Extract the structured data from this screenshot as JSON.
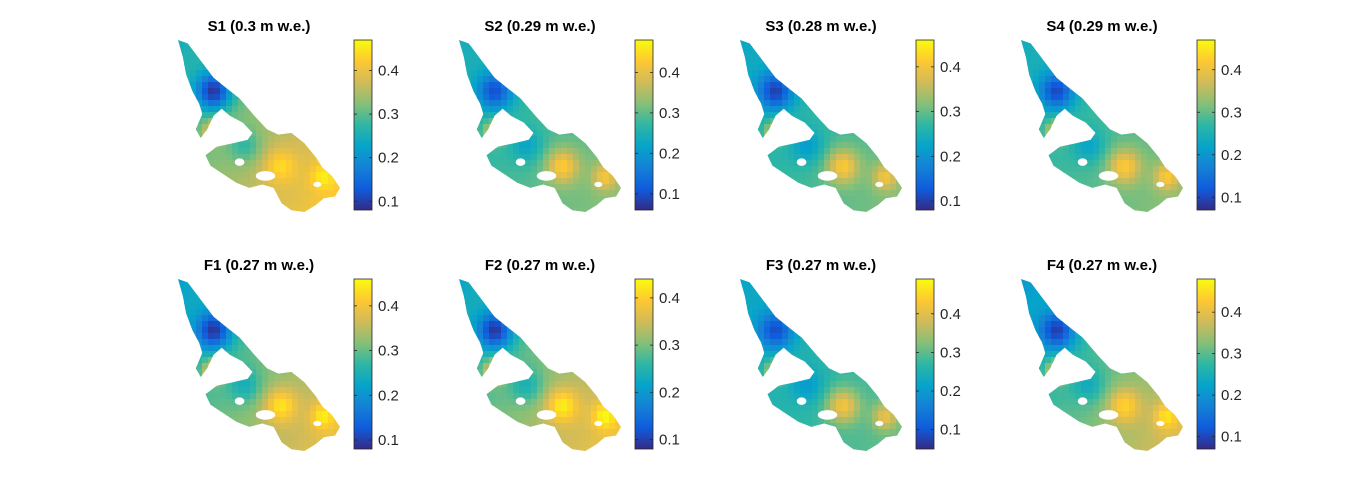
{
  "colors": {
    "background": "#ffffff",
    "parula": [
      "#352a87",
      "#0f5cdd",
      "#1481d6",
      "#06a4ca",
      "#2eb7a4",
      "#87bf77",
      "#d1bb59",
      "#fec832",
      "#f9fb0e"
    ]
  },
  "chart_data": [
    {
      "type": "heatmap",
      "title": "S1 (0.3 m w.e.)",
      "colorbar": {
        "ticks": [
          "0.1",
          "0.2",
          "0.3",
          "0.4"
        ],
        "tick_values": [
          0.1,
          0.2,
          0.3,
          0.4
        ],
        "range": [
          0.08,
          0.47
        ]
      },
      "field": {
        "regional": [
          0.25,
          0.28,
          0.36,
          0.43
        ],
        "hotspots": [
          0.42,
          0.44,
          0.46
        ],
        "min": 0.09
      }
    },
    {
      "type": "heatmap",
      "title": "S2 (0.29 m w.e.)",
      "colorbar": {
        "ticks": [
          "0.1",
          "0.2",
          "0.3",
          "0.4"
        ],
        "tick_values": [
          0.1,
          0.2,
          0.3,
          0.4
        ],
        "range": [
          0.06,
          0.48
        ]
      },
      "field": {
        "regional": [
          0.24,
          0.28,
          0.32,
          0.33
        ],
        "hotspots": [
          0.41,
          0.43,
          0.42
        ],
        "min": 0.1
      }
    },
    {
      "type": "heatmap",
      "title": "S3 (0.28 m w.e.)",
      "colorbar": {
        "ticks": [
          "0.1",
          "0.2",
          "0.3",
          "0.4"
        ],
        "tick_values": [
          0.1,
          0.2,
          0.3,
          0.4
        ],
        "range": [
          0.08,
          0.46
        ]
      },
      "field": {
        "regional": [
          0.23,
          0.27,
          0.31,
          0.32
        ],
        "hotspots": [
          0.39,
          0.41,
          0.4
        ],
        "min": 0.1
      }
    },
    {
      "type": "heatmap",
      "title": "S4 (0.29 m w.e.)",
      "colorbar": {
        "ticks": [
          "0.1",
          "0.2",
          "0.3",
          "0.4"
        ],
        "tick_values": [
          0.1,
          0.2,
          0.3,
          0.4
        ],
        "range": [
          0.07,
          0.47
        ]
      },
      "field": {
        "regional": [
          0.24,
          0.28,
          0.32,
          0.33
        ],
        "hotspots": [
          0.41,
          0.42,
          0.42
        ],
        "min": 0.1
      }
    },
    {
      "type": "heatmap",
      "title": "F1 (0.27 m w.e.)",
      "colorbar": {
        "ticks": [
          "0.1",
          "0.2",
          "0.3",
          "0.4"
        ],
        "tick_values": [
          0.1,
          0.2,
          0.3,
          0.4
        ],
        "range": [
          0.08,
          0.46
        ]
      },
      "field": {
        "regional": [
          0.22,
          0.27,
          0.35,
          0.4
        ],
        "hotspots": [
          0.42,
          0.44,
          0.45
        ],
        "min": 0.09
      }
    },
    {
      "type": "heatmap",
      "title": "F2 (0.27 m w.e.)",
      "colorbar": {
        "ticks": [
          "0.1",
          "0.2",
          "0.3",
          "0.4"
        ],
        "tick_values": [
          0.1,
          0.2,
          0.3,
          0.4
        ],
        "range": [
          0.08,
          0.44
        ]
      },
      "field": {
        "regional": [
          0.22,
          0.27,
          0.34,
          0.39
        ],
        "hotspots": [
          0.41,
          0.43,
          0.44
        ],
        "min": 0.09
      }
    },
    {
      "type": "heatmap",
      "title": "F3 (0.27 m w.e.)",
      "colorbar": {
        "ticks": [
          "0.1",
          "0.2",
          "0.3",
          "0.4"
        ],
        "tick_values": [
          0.1,
          0.2,
          0.3,
          0.4
        ],
        "range": [
          0.05,
          0.49
        ]
      },
      "field": {
        "regional": [
          0.22,
          0.26,
          0.3,
          0.31
        ],
        "hotspots": [
          0.4,
          0.42,
          0.41
        ],
        "min": 0.09
      }
    },
    {
      "type": "heatmap",
      "title": "F4 (0.27 m w.e.)",
      "colorbar": {
        "ticks": [
          "0.1",
          "0.2",
          "0.3",
          "0.4"
        ],
        "tick_values": [
          0.1,
          0.2,
          0.3,
          0.4
        ],
        "range": [
          0.07,
          0.48
        ]
      },
      "field": {
        "regional": [
          0.21,
          0.26,
          0.34,
          0.4
        ],
        "hotspots": [
          0.42,
          0.44,
          0.46
        ],
        "min": 0.09
      }
    }
  ]
}
